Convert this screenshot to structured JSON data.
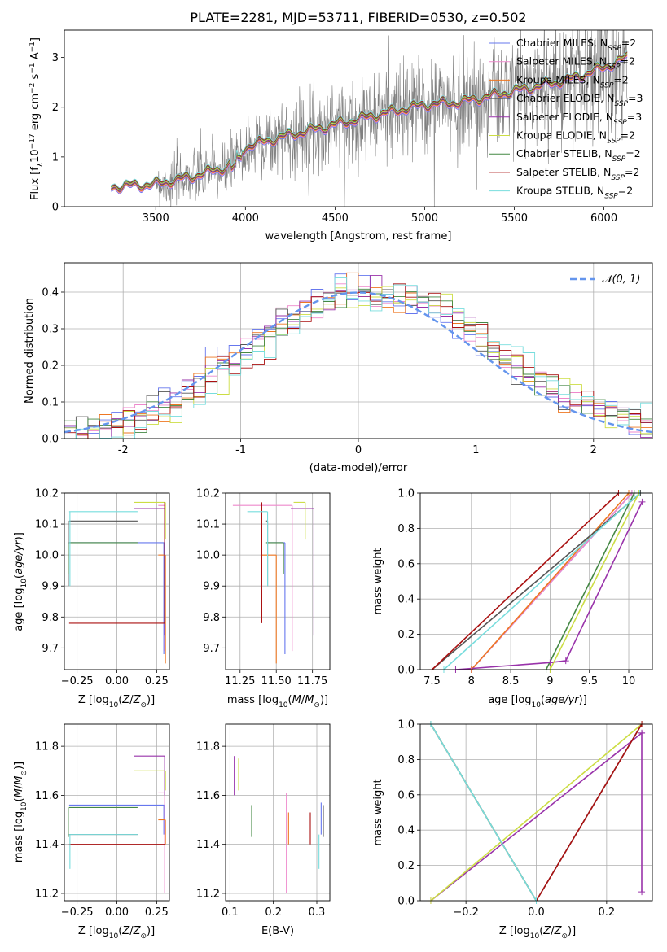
{
  "title": "PLATE=2281, MJD=53711, FIBERID=0530, z=0.502",
  "colors": {
    "observed": "#808080",
    "normal_curve": "#6495ed",
    "model": [
      "#6677ee",
      "#ee88cc",
      "#ee7722",
      "#555555",
      "#9933aa",
      "#ccdd44",
      "#448844",
      "#aa1111",
      "#77dddd"
    ]
  },
  "chart_data": [
    {
      "id": "spectrum",
      "type": "line",
      "title": "PLATE=2281, MJD=53711, FIBERID=0530, z=0.502",
      "xlabel": "wavelength [Angstrom, rest frame]",
      "ylabel": "Flux [f$_\\lambda$10$^{-17}$ erg cm$^{-2}$ s$^{-1}$ A$^{-1}$]",
      "ylabel_parts": [
        "Flux [f",
        "λ",
        "10",
        "−17",
        " erg cm",
        "−2",
        " s",
        "−1",
        " A",
        "−1",
        "]"
      ],
      "xlim": [
        2990,
        6270
      ],
      "ylim": [
        0,
        3.55
      ],
      "xticks": [
        3500,
        4000,
        4500,
        5000,
        5500,
        6000
      ],
      "yticks": [
        0,
        1,
        2,
        3
      ],
      "grid": false,
      "legend_position": "top-right",
      "legend": [
        {
          "pre": "Chabrier MILES, N",
          "sub": "SSP",
          "post": "=2"
        },
        {
          "pre": "Salpeter MILES, N",
          "sub": "SSP",
          "post": "=2"
        },
        {
          "pre": "Kroupa MILES, N",
          "sub": "SSP",
          "post": "=2"
        },
        {
          "pre": "Chabrier ELODIE, N",
          "sub": "SSP",
          "post": "=3"
        },
        {
          "pre": "Salpeter ELODIE, N",
          "sub": "SSP",
          "post": "=3"
        },
        {
          "pre": "Kroupa ELODIE, N",
          "sub": "SSP",
          "post": "=2"
        },
        {
          "pre": "Chabrier STELIB, N",
          "sub": "SSP",
          "post": "=2"
        },
        {
          "pre": "Salpeter STELIB, N",
          "sub": "SSP",
          "post": "=2"
        },
        {
          "pre": "Kroupa STELIB, N",
          "sub": "SSP",
          "post": "=2"
        }
      ],
      "model_start": 3250,
      "observed_start": 3500,
      "end": 6130,
      "continuum": [
        [
          3250,
          0.4
        ],
        [
          3500,
          0.45
        ],
        [
          3700,
          0.6
        ],
        [
          3900,
          0.8
        ],
        [
          4000,
          1.2
        ],
        [
          4200,
          1.4
        ],
        [
          4500,
          1.65
        ],
        [
          4800,
          1.9
        ],
        [
          5000,
          2.05
        ],
        [
          5200,
          2.1
        ],
        [
          5400,
          2.25
        ],
        [
          5600,
          2.4
        ],
        [
          5800,
          2.55
        ],
        [
          6000,
          2.8
        ],
        [
          6130,
          3.0
        ]
      ]
    },
    {
      "id": "residuals",
      "type": "area",
      "xlabel": "(data-model)/error",
      "ylabel": "Normed distribution",
      "xlim": [
        -2.5,
        2.5
      ],
      "ylim": [
        0,
        0.48
      ],
      "xticks": [
        -2,
        -1,
        0,
        1,
        2
      ],
      "yticks": [
        0.0,
        0.1,
        0.2,
        0.3,
        0.4
      ],
      "grid": true,
      "legend_position": "top-right",
      "legend": [
        "𝒩(0, 1)"
      ],
      "series_label": "N(0,1)"
    },
    {
      "id": "age-vs-Z",
      "type": "scatter",
      "xlabel_pre": "Z [log",
      "xlabel_sub": "10",
      "xlabel_post": "(Z/Z",
      "xlabel_sun": "⊙",
      "xlabel_end": ")]",
      "ylabel": "age [log10(age/yr)]",
      "xlim": [
        -0.33,
        0.33
      ],
      "ylim": [
        9.63,
        10.2
      ],
      "xticks": [
        -0.25,
        0.0,
        0.25
      ],
      "xticklabels": [
        "−0.25",
        "0.00",
        "0.25"
      ],
      "yticks": [
        9.7,
        9.8,
        9.9,
        10.0,
        10.1,
        10.2
      ],
      "grid": true
    },
    {
      "id": "age-vs-mass",
      "type": "scatter",
      "xlabel": "mass [log10(M/M⊙)]",
      "xlim": [
        11.15,
        11.87
      ],
      "ylim": [
        9.63,
        10.2
      ],
      "xticks": [
        11.25,
        11.5,
        11.75
      ],
      "xticklabels": [
        "11.25",
        "11.50",
        "11.75"
      ],
      "yticks": [
        9.7,
        9.8,
        9.9,
        10.0,
        10.1,
        10.2
      ],
      "grid": true
    },
    {
      "id": "mass-weight-vs-age",
      "type": "line",
      "xlabel": "age [log10(age/yr)]",
      "ylabel": "mass weight",
      "xlim": [
        7.35,
        10.3
      ],
      "ylim": [
        0,
        1
      ],
      "xticks": [
        7.5,
        8.0,
        8.5,
        9.0,
        9.5,
        10.0
      ],
      "yticks": [
        0.0,
        0.2,
        0.4,
        0.6,
        0.8,
        1.0
      ],
      "grid": true,
      "lines": [
        {
          "model": 0,
          "x": [
            8.0,
            10.04
          ],
          "y": [
            0.0,
            1.0
          ]
        },
        {
          "model": 1,
          "x": [
            8.0,
            10.04
          ],
          "y": [
            0.0,
            1.0
          ]
        },
        {
          "model": 2,
          "x": [
            8.0,
            10.0
          ],
          "y": [
            0.0,
            1.0
          ]
        },
        {
          "model": 3,
          "x": [
            7.5,
            10.15
          ],
          "y": [
            0.0,
            1.0
          ]
        },
        {
          "model": 4,
          "x": [
            7.8,
            9.0,
            9.2,
            10.17
          ],
          "y": [
            0.0,
            0.04,
            0.05,
            0.95
          ]
        },
        {
          "model": 5,
          "x": [
            9.0,
            10.13
          ],
          "y": [
            0.0,
            1.0
          ]
        },
        {
          "model": 6,
          "x": [
            8.95,
            10.07
          ],
          "y": [
            0.0,
            1.0
          ]
        },
        {
          "model": 7,
          "x": [
            7.5,
            9.87
          ],
          "y": [
            0.0,
            1.0
          ]
        },
        {
          "model": 8,
          "x": [
            7.65,
            10.14
          ],
          "y": [
            0.0,
            1.0
          ]
        }
      ]
    },
    {
      "id": "mass-vs-Z",
      "type": "scatter",
      "xlabel": "Z [log10(Z/Z⊙)]",
      "ylabel": "mass [log10(M/M⊙)]",
      "xlim": [
        -0.33,
        0.33
      ],
      "ylim": [
        11.17,
        11.89
      ],
      "xticks": [
        -0.25,
        0.0,
        0.25
      ],
      "xticklabels": [
        "−0.25",
        "0.00",
        "0.25"
      ],
      "yticks": [
        11.2,
        11.4,
        11.6,
        11.8
      ],
      "grid": true
    },
    {
      "id": "mass-vs-EBV",
      "type": "scatter",
      "xlabel": "E(B-V)",
      "xlim": [
        0.09,
        0.33
      ],
      "ylim": [
        11.17,
        11.89
      ],
      "xticks": [
        0.1,
        0.2,
        0.3
      ],
      "yticks": [
        11.2,
        11.4,
        11.6,
        11.8
      ],
      "grid": true
    },
    {
      "id": "mass-weight-vs-Z",
      "type": "line",
      "xlabel": "Z [log10(Z/Z⊙)]",
      "ylabel": "mass weight",
      "xlim": [
        -0.33,
        0.33
      ],
      "ylim": [
        0,
        1
      ],
      "xticks": [
        -0.2,
        0.0,
        0.2
      ],
      "xticklabels": [
        "−0.2",
        "0.0",
        "0.2"
      ],
      "yticks": [
        0.0,
        0.2,
        0.4,
        0.6,
        0.8,
        1.0
      ],
      "grid": true,
      "lines": [
        {
          "model": 0,
          "x": [
            -0.3,
            0.0
          ],
          "y": [
            1.0,
            0.0
          ]
        },
        {
          "model": 1,
          "x": [
            -0.3,
            0.0
          ],
          "y": [
            1.0,
            0.0
          ]
        },
        {
          "model": 2,
          "x": [
            -0.3,
            0.0
          ],
          "y": [
            1.0,
            0.0
          ]
        },
        {
          "model": 3,
          "x": [
            0.0,
            0.3
          ],
          "y": [
            0.0,
            1.0
          ]
        },
        {
          "model": 4,
          "x": [
            -0.3,
            0.3,
            0.3,
            0.3
          ],
          "y": [
            0.0,
            0.95,
            0.05,
            0.95
          ]
        },
        {
          "model": 5,
          "x": [
            -0.3,
            0.3
          ],
          "y": [
            0.0,
            1.0
          ]
        },
        {
          "model": 6,
          "x": [
            -0.3,
            0.0
          ],
          "y": [
            1.0,
            0.0
          ]
        },
        {
          "model": 7,
          "x": [
            0.0,
            0.3
          ],
          "y": [
            0.0,
            1.0
          ]
        },
        {
          "model": 8,
          "x": [
            -0.3,
            0.0
          ],
          "y": [
            1.0,
            0.0
          ]
        }
      ]
    }
  ],
  "models": [
    {
      "name": "Chabrier MILES",
      "age": 10.04,
      "age_lo": 9.68,
      "age_hi": 10.04,
      "Z": 0.3,
      "Z_lo": -0.3,
      "mass": 11.56,
      "mass_lo": 11.44,
      "ebv": 0.31
    },
    {
      "name": "Salpeter MILES",
      "age": 10.16,
      "age_lo": 9.69,
      "age_hi": 10.16,
      "Z": 0.3,
      "Z_lo": 0.26,
      "mass": 11.61,
      "mass_lo": 11.2,
      "ebv": 0.23
    },
    {
      "name": "Kroupa MILES",
      "age": 10.0,
      "age_lo": 9.65,
      "age_hi": 10.0,
      "Z": 0.3,
      "Z_lo": 0.26,
      "mass": 11.5,
      "mass_lo": 11.4,
      "ebv": 0.235
    },
    {
      "name": "Chabrier ELODIE",
      "age": 10.11,
      "age_lo": 9.9,
      "age_hi": 10.11,
      "Z": -0.3,
      "Z_lo": 0.13,
      "mass": 11.44,
      "mass_lo": 11.43,
      "ebv": 0.315
    },
    {
      "name": "Salpeter ELODIE",
      "age": 10.15,
      "age_lo": 9.74,
      "age_hi": 10.15,
      "Z": 0.3,
      "Z_lo": 0.11,
      "mass": 11.76,
      "mass_lo": 11.6,
      "ebv": 0.11
    },
    {
      "name": "Kroupa ELODIE",
      "age": 10.17,
      "age_lo": 10.05,
      "age_hi": 10.17,
      "Z": 0.3,
      "Z_lo": 0.11,
      "mass": 11.7,
      "mass_lo": 11.62,
      "ebv": 0.12
    },
    {
      "name": "Chabrier STELIB",
      "age": 10.04,
      "age_lo": 9.94,
      "age_hi": 10.04,
      "Z": -0.3,
      "Z_lo": 0.13,
      "mass": 11.55,
      "mass_lo": 11.43,
      "ebv": 0.15
    },
    {
      "name": "Salpeter STELIB",
      "age": 9.78,
      "age_lo": 9.78,
      "age_hi": 10.17,
      "Z": 0.3,
      "Z_lo": -0.3,
      "mass": 11.4,
      "mass_lo": 11.4,
      "ebv": 0.285
    },
    {
      "name": "Kroupa STELIB",
      "age": 10.14,
      "age_lo": 9.9,
      "age_hi": 10.14,
      "Z": -0.3,
      "Z_lo": 0.13,
      "mass": 11.44,
      "mass_lo": 11.3,
      "ebv": 0.305
    }
  ]
}
